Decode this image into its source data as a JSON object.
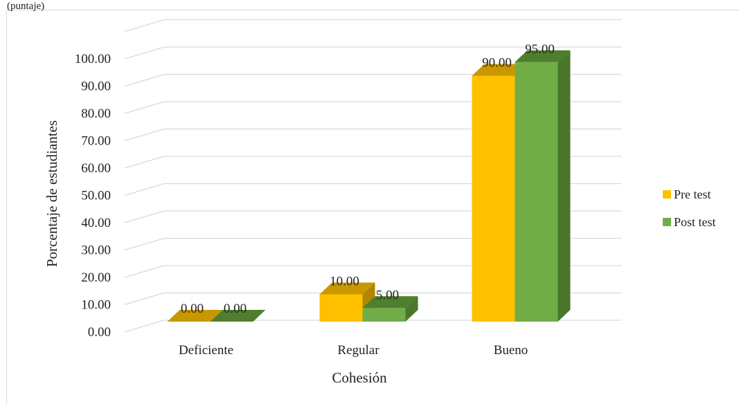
{
  "top_caption": "(puntaje)",
  "chart_data": {
    "type": "bar",
    "bar_style": "3d-clustered",
    "categories": [
      "Deficiente",
      "Regular",
      "Bueno"
    ],
    "series": [
      {
        "name": "Pre test",
        "values": [
          0.0,
          10.0,
          90.0
        ],
        "labels": [
          "0.00",
          "10.00",
          "90.00"
        ],
        "color": "#FFC000",
        "top_color": "#C99700",
        "side_color": "#B38600"
      },
      {
        "name": "Post test",
        "values": [
          0.0,
          5.0,
          95.0
        ],
        "labels": [
          "0.00",
          "5.00",
          "95.00"
        ],
        "color": "#70AD47",
        "top_color": "#4F7F2E",
        "side_color": "#4A7729"
      }
    ],
    "title": "",
    "xlabel": "Cohesión",
    "ylabel": "Porcentaje de estudiantes",
    "ylim": [
      0,
      100
    ],
    "yticks": [
      "0.00",
      "10.00",
      "20.00",
      "30.00",
      "40.00",
      "50.00",
      "60.00",
      "70.00",
      "80.00",
      "90.00",
      "100.00"
    ],
    "grid": true,
    "legend_position": "right"
  }
}
